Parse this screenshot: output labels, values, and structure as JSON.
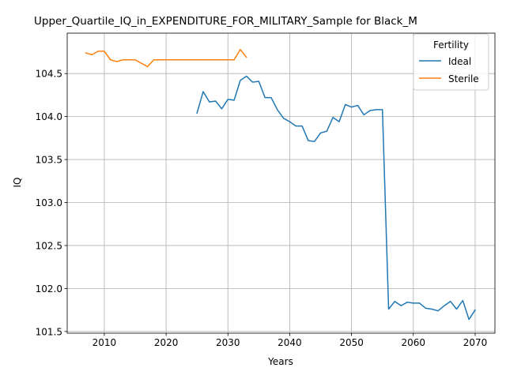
{
  "chart_data": {
    "type": "line",
    "title": "Upper_Quartile_IQ_in_EXPENDITURE_FOR_MILITARY_Sample for Black_M",
    "xlabel": "Years",
    "ylabel": "IQ",
    "xlim": [
      2004,
      2073.2
    ],
    "ylim": [
      101.48,
      104.97
    ],
    "xticks": [
      2010,
      2020,
      2030,
      2040,
      2050,
      2060,
      2070
    ],
    "yticks": [
      101.5,
      102.0,
      102.5,
      103.0,
      103.5,
      104.0,
      104.5
    ],
    "grid": true,
    "legend": {
      "title": "Fertility",
      "position": "top-right"
    },
    "series": [
      {
        "name": "Ideal",
        "color": "#1f77b4",
        "x": [
          2025,
          2026,
          2027,
          2028,
          2029,
          2030,
          2031,
          2032,
          2033,
          2034,
          2035,
          2036,
          2037,
          2038,
          2039,
          2040,
          2041,
          2042,
          2043,
          2044,
          2045,
          2046,
          2047,
          2048,
          2049,
          2050,
          2051,
          2052,
          2053,
          2054,
          2055,
          2056,
          2057,
          2058,
          2059,
          2060,
          2061,
          2062,
          2063,
          2064,
          2065,
          2066,
          2067,
          2068,
          2069,
          2070
        ],
        "y": [
          104.04,
          104.29,
          104.17,
          104.18,
          104.09,
          104.2,
          104.19,
          104.42,
          104.47,
          104.4,
          104.41,
          104.22,
          104.22,
          104.08,
          103.98,
          103.94,
          103.89,
          103.89,
          103.72,
          103.71,
          103.81,
          103.83,
          103.99,
          103.94,
          104.14,
          104.11,
          104.13,
          104.02,
          104.07,
          104.08,
          104.08,
          101.76,
          101.85,
          101.8,
          101.84,
          101.83,
          101.83,
          101.77,
          101.76,
          101.74,
          101.8,
          101.85,
          101.76,
          101.86,
          101.64,
          101.75
        ]
      },
      {
        "name": "Sterile",
        "color": "#ff7f0e",
        "x": [
          2007,
          2008,
          2009,
          2010,
          2011,
          2012,
          2013,
          2014,
          2015,
          2016,
          2017,
          2018,
          2019,
          2020,
          2021,
          2022,
          2023,
          2024,
          2025,
          2026,
          2027,
          2028,
          2029,
          2030,
          2031,
          2032,
          2033
        ],
        "y": [
          104.74,
          104.72,
          104.76,
          104.76,
          104.66,
          104.64,
          104.66,
          104.66,
          104.66,
          104.62,
          104.58,
          104.66,
          104.66,
          104.66,
          104.66,
          104.66,
          104.66,
          104.66,
          104.66,
          104.66,
          104.66,
          104.66,
          104.66,
          104.66,
          104.66,
          104.78,
          104.69
        ]
      }
    ]
  }
}
